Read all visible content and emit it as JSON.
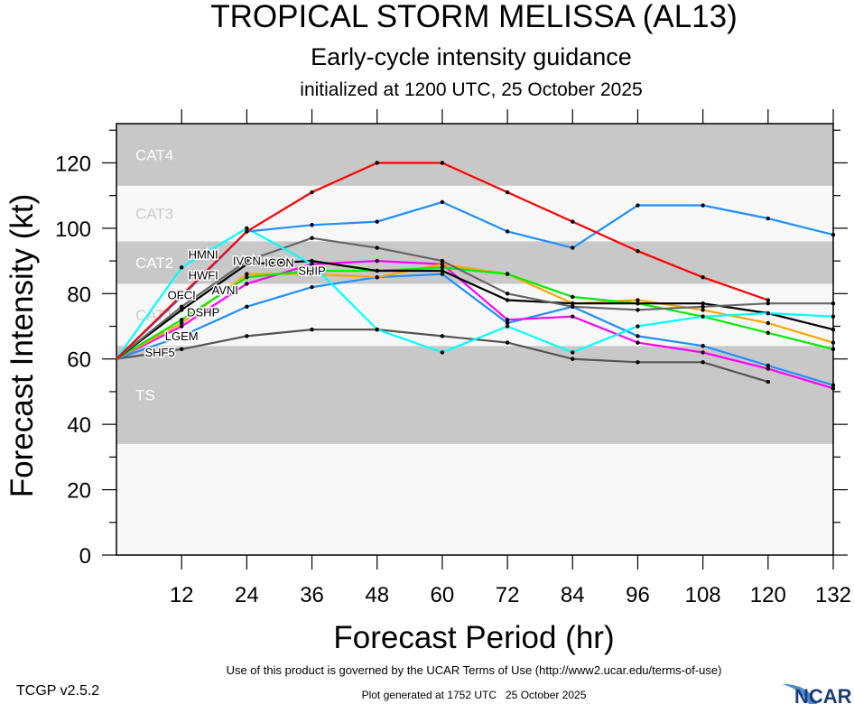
{
  "chart_data": {
    "type": "line",
    "title": "TROPICAL STORM MELISSA (AL13)",
    "subtitle": "Early-cycle intensity guidance",
    "subtitle2": "initialized at 1200 UTC, 25 October 2025",
    "xlabel": "Forecast Period (hr)",
    "ylabel": "Forecast Intensity (kt)",
    "xlim": [
      0,
      132
    ],
    "ylim": [
      0,
      132
    ],
    "xticks": [
      12,
      24,
      36,
      48,
      60,
      72,
      84,
      96,
      108,
      120,
      132
    ],
    "yticks": [
      0,
      20,
      40,
      60,
      80,
      100,
      120
    ],
    "grid": false,
    "bands": [
      {
        "label": "TS",
        "range": [
          34,
          64
        ],
        "color": "#c8c8c8"
      },
      {
        "label": "CAT1",
        "range": [
          64,
          83
        ],
        "color": "#f8f8f8"
      },
      {
        "label": "CAT2",
        "range": [
          83,
          96
        ],
        "color": "#c8c8c8"
      },
      {
        "label": "CAT3",
        "range": [
          96,
          113
        ],
        "color": "#f8f8f8"
      },
      {
        "label": "CAT4",
        "range": [
          113,
          132
        ],
        "color": "#c8c8c8"
      }
    ],
    "below_band_color": "#f8f8f8",
    "x": [
      0,
      12,
      24,
      36,
      48,
      60,
      72,
      84,
      96,
      108,
      120,
      132
    ],
    "series": [
      {
        "name": "SHF5",
        "color": "#555555",
        "values": [
          60,
          63,
          67,
          69,
          69,
          67,
          65,
          60,
          59,
          59,
          53,
          null
        ]
      },
      {
        "name": "LGEM",
        "color": "#1e90ff",
        "values": [
          60,
          67,
          76,
          82,
          85,
          86,
          71,
          76,
          67,
          64,
          58,
          52
        ]
      },
      {
        "name": "DSHP",
        "color": "#ff00ff",
        "values": [
          60,
          70,
          83,
          89,
          90,
          89,
          72,
          73,
          65,
          62,
          57,
          51
        ]
      },
      {
        "name": "AVNI",
        "color": "#ffa500",
        "values": [
          60,
          71,
          86,
          86,
          85,
          89,
          86,
          77,
          78,
          75,
          71,
          65
        ]
      },
      {
        "name": "SHIP",
        "color": "#00ee00",
        "values": [
          60,
          72,
          85,
          87,
          87,
          88,
          86,
          79,
          77,
          73,
          68,
          63
        ]
      },
      {
        "name": "ICON",
        "color": "#000000",
        "values": [
          60,
          75,
          89,
          90,
          87,
          87,
          78,
          77,
          77,
          77,
          74,
          69
        ]
      },
      {
        "name": "IVCN",
        "color": "#666666",
        "values": [
          60,
          76,
          90,
          97,
          94,
          90,
          80,
          76,
          75,
          76,
          77,
          77
        ]
      },
      {
        "name": "HMNI",
        "color": "#00ffff",
        "values": [
          60,
          88,
          100,
          89,
          69,
          62,
          70,
          62,
          70,
          73,
          74,
          73
        ]
      },
      {
        "name": "HWFI",
        "color": "#1e90ff",
        "values": [
          60,
          79,
          99,
          101,
          102,
          108,
          99,
          94,
          107,
          107,
          103,
          98
        ]
      },
      {
        "name": "OFCI",
        "color": "#ff0000",
        "values": [
          60,
          null,
          99,
          111,
          120,
          120,
          111,
          102,
          93,
          85,
          78,
          null
        ]
      }
    ]
  },
  "footer": {
    "version": "TCGP v2.5.2",
    "terms": "Use of this product is governed by the UCAR Terms of Use (http://www2.ucar.edu/terms-of-use)",
    "generated": "Plot generated at 1752 UTC   25 October 2025",
    "logo_text": "NCAR"
  }
}
